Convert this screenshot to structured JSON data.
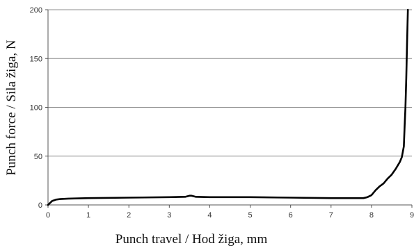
{
  "chart_data": {
    "type": "line",
    "title": "",
    "xlabel": "Punch travel / Hod žiga, mm",
    "ylabel": "Punch force / Sila žiga, N",
    "xlim": [
      0,
      9
    ],
    "ylim": [
      0,
      200
    ],
    "x_ticks": [
      "0",
      "1",
      "2",
      "3",
      "4",
      "5",
      "6",
      "7",
      "8",
      "9"
    ],
    "y_ticks": [
      "0",
      "50",
      "100",
      "150",
      "200"
    ],
    "grid": "horizontal",
    "legend": "none",
    "line_color": "#000000",
    "series": [
      {
        "x": [
          0,
          0.05,
          0.1,
          0.2,
          0.3,
          0.5,
          1.0,
          2.0,
          3.0,
          3.4,
          3.5,
          3.55,
          3.65,
          4.0,
          5.0,
          6.0,
          7.0,
          7.8,
          7.9,
          8.0,
          8.1,
          8.2,
          8.3,
          8.4,
          8.5,
          8.6,
          8.7,
          8.75,
          8.8,
          8.82,
          8.84,
          8.86,
          8.88,
          8.9
        ],
        "y": [
          0,
          2,
          4,
          5.5,
          6,
          6.5,
          7,
          7.5,
          8,
          8.3,
          9.5,
          9.5,
          8.3,
          8,
          8,
          7.5,
          7,
          7,
          8,
          10,
          15,
          19,
          22,
          27,
          31,
          37,
          44,
          49,
          60,
          80,
          100,
          130,
          165,
          200
        ]
      }
    ]
  }
}
